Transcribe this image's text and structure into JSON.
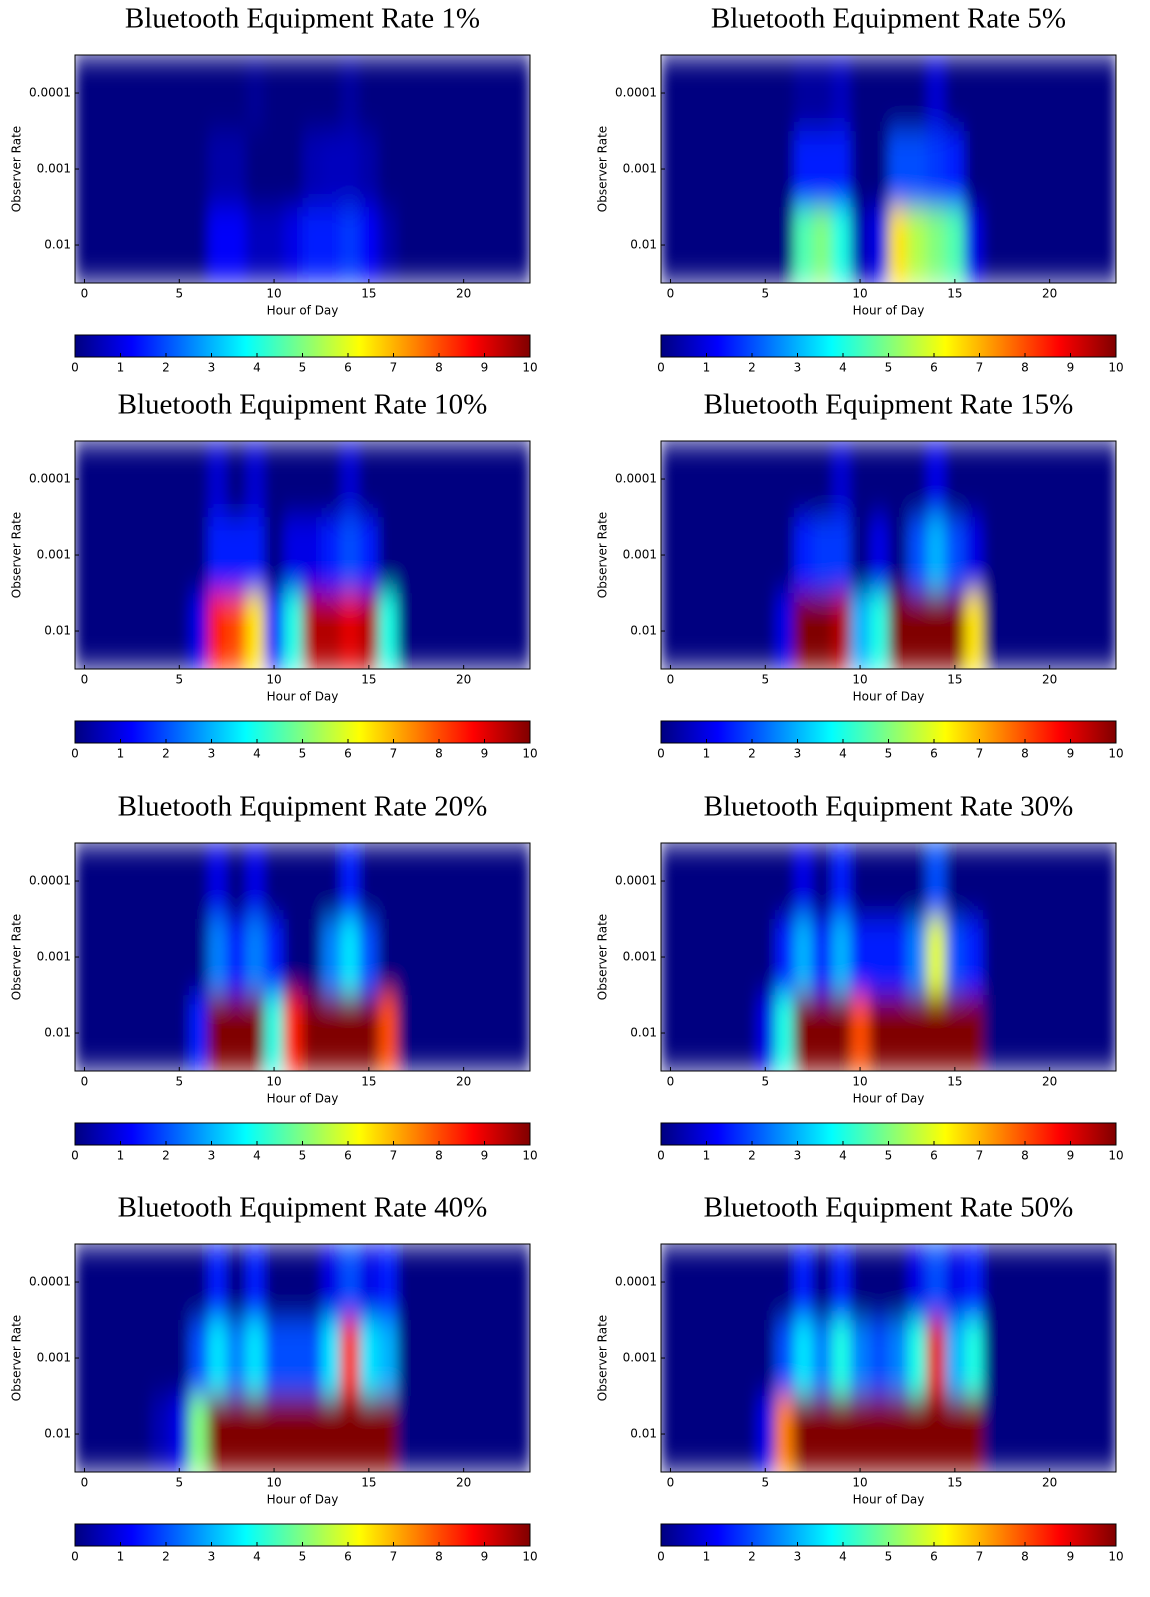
{
  "chart_data": [
    {
      "type": "heatmap",
      "title": "Bluetooth Equipment Rate 1%",
      "x_label": "Hour of Day",
      "y_label": "Observer Rate",
      "x": [
        0,
        1,
        2,
        3,
        4,
        5,
        6,
        7,
        8,
        9,
        10,
        11,
        12,
        13,
        14,
        15,
        16,
        17,
        18,
        19,
        20,
        21,
        22,
        23
      ],
      "y": [
        0.0001,
        0.001,
        0.01
      ],
      "z": [
        [
          0,
          0,
          0,
          0,
          0,
          0,
          0,
          0,
          0,
          0.2,
          0,
          0,
          0,
          0,
          0.3,
          0,
          0,
          0,
          0,
          0,
          0,
          0,
          0,
          0
        ],
        [
          0,
          0,
          0,
          0,
          0,
          0,
          0,
          0.4,
          0.4,
          0,
          0,
          0,
          0.5,
          0.6,
          0.6,
          0.4,
          0,
          0,
          0,
          0,
          0,
          0,
          0,
          0
        ],
        [
          0,
          0,
          0,
          0,
          0,
          0,
          0,
          1.2,
          1.2,
          0.6,
          0.6,
          1,
          1.5,
          1.5,
          1.8,
          1.2,
          0.4,
          0,
          0,
          0,
          0,
          0,
          0,
          0
        ]
      ],
      "xlim": [
        -0.5,
        23.5
      ],
      "ylim": [
        0.0316,
        3.16e-05
      ],
      "log_y": true,
      "xticks": [
        0,
        5,
        10,
        15,
        20
      ],
      "yticks": [
        0.0001,
        0.001,
        0.01
      ],
      "colormap": "jet",
      "clim": [
        0,
        10
      ],
      "cticks": [
        0,
        1,
        2,
        3,
        4,
        5,
        6,
        7,
        8,
        9,
        10
      ]
    },
    {
      "type": "heatmap",
      "title": "Bluetooth Equipment Rate 5%",
      "x_label": "Hour of Day",
      "y_label": "Observer Rate",
      "x": [
        0,
        1,
        2,
        3,
        4,
        5,
        6,
        7,
        8,
        9,
        10,
        11,
        12,
        13,
        14,
        15,
        16,
        17,
        18,
        19,
        20,
        21,
        22,
        23
      ],
      "y": [
        0.0001,
        0.001,
        0.01
      ],
      "z": [
        [
          0,
          0,
          0,
          0,
          0,
          0,
          0,
          0.3,
          0.3,
          0.6,
          0,
          0,
          0,
          0,
          0.8,
          0,
          0,
          0,
          0,
          0,
          0,
          0,
          0,
          0
        ],
        [
          0,
          0,
          0,
          0,
          0,
          0,
          0,
          1.5,
          1.5,
          1.5,
          0,
          0,
          2,
          2,
          1.8,
          1.5,
          0,
          0,
          0,
          0,
          0,
          0,
          0,
          0
        ],
        [
          0,
          0,
          0,
          0,
          0,
          0,
          0,
          4.5,
          5,
          4,
          0.5,
          1,
          6.5,
          5.5,
          5,
          4.5,
          1,
          0,
          0,
          0,
          0,
          0,
          0,
          0
        ]
      ],
      "xlim": [
        -0.5,
        23.5
      ],
      "ylim": [
        0.0316,
        3.16e-05
      ],
      "log_y": true,
      "xticks": [
        0,
        5,
        10,
        15,
        20
      ],
      "yticks": [
        0.0001,
        0.001,
        0.01
      ],
      "colormap": "jet",
      "clim": [
        0,
        10
      ],
      "cticks": [
        0,
        1,
        2,
        3,
        4,
        5,
        6,
        7,
        8,
        9,
        10
      ]
    },
    {
      "type": "heatmap",
      "title": "Bluetooth Equipment Rate 10%",
      "x_label": "Hour of Day",
      "y_label": "Observer Rate",
      "x": [
        0,
        1,
        2,
        3,
        4,
        5,
        6,
        7,
        8,
        9,
        10,
        11,
        12,
        13,
        14,
        15,
        16,
        17,
        18,
        19,
        20,
        21,
        22,
        23
      ],
      "y": [
        0.0001,
        0.001,
        0.01
      ],
      "z": [
        [
          0,
          0,
          0,
          0,
          0,
          0,
          0,
          0.8,
          0,
          0.8,
          0,
          0,
          0,
          0,
          0.8,
          0,
          0,
          0,
          0,
          0,
          0,
          0,
          0,
          0
        ],
        [
          0,
          0,
          0,
          0,
          0,
          0,
          0,
          1.5,
          1.5,
          1.5,
          0,
          1,
          1,
          1.5,
          2,
          1.5,
          0,
          0,
          0,
          0,
          0,
          0,
          0,
          0
        ],
        [
          0,
          0,
          0,
          0,
          0,
          0,
          1,
          8.5,
          8,
          6.5,
          1.5,
          4,
          9.5,
          9.5,
          9,
          9.5,
          4,
          0,
          0,
          0,
          0,
          0,
          0,
          0
        ]
      ],
      "xlim": [
        -0.5,
        23.5
      ],
      "ylim": [
        0.0316,
        3.16e-05
      ],
      "log_y": true,
      "xticks": [
        0,
        5,
        10,
        15,
        20
      ],
      "yticks": [
        0.0001,
        0.001,
        0.01
      ],
      "colormap": "jet",
      "clim": [
        0,
        10
      ],
      "cticks": [
        0,
        1,
        2,
        3,
        4,
        5,
        6,
        7,
        8,
        9,
        10
      ]
    },
    {
      "type": "heatmap",
      "title": "Bluetooth Equipment Rate 15%",
      "x_label": "Hour of Day",
      "y_label": "Observer Rate",
      "x": [
        0,
        1,
        2,
        3,
        4,
        5,
        6,
        7,
        8,
        9,
        10,
        11,
        12,
        13,
        14,
        15,
        16,
        17,
        18,
        19,
        20,
        21,
        22,
        23
      ],
      "y": [
        0.0001,
        0.001,
        0.01
      ],
      "z": [
        [
          0,
          0,
          0,
          0,
          0,
          0,
          0,
          0,
          0,
          0.8,
          0,
          0,
          0,
          0,
          1,
          0,
          0,
          0,
          0,
          0,
          0,
          0,
          0,
          0
        ],
        [
          0,
          0,
          0,
          0,
          0,
          0,
          0,
          1.5,
          1.8,
          1.8,
          0,
          1,
          0,
          2,
          3,
          2,
          1,
          0,
          0,
          0,
          0,
          0,
          0,
          0
        ],
        [
          0,
          0,
          0,
          0,
          0,
          0,
          1,
          10,
          10,
          9.5,
          3,
          4,
          10,
          10,
          10,
          10,
          6.5,
          0,
          0,
          0,
          0,
          0,
          0,
          0
        ]
      ],
      "xlim": [
        -0.5,
        23.5
      ],
      "ylim": [
        0.0316,
        3.16e-05
      ],
      "log_y": true,
      "xticks": [
        0,
        5,
        10,
        15,
        20
      ],
      "yticks": [
        0.0001,
        0.001,
        0.01
      ],
      "colormap": "jet",
      "clim": [
        0,
        10
      ],
      "cticks": [
        0,
        1,
        2,
        3,
        4,
        5,
        6,
        7,
        8,
        9,
        10
      ]
    },
    {
      "type": "heatmap",
      "title": "Bluetooth Equipment Rate 20%",
      "x_label": "Hour of Day",
      "y_label": "Observer Rate",
      "x": [
        0,
        1,
        2,
        3,
        4,
        5,
        6,
        7,
        8,
        9,
        10,
        11,
        12,
        13,
        14,
        15,
        16,
        17,
        18,
        19,
        20,
        21,
        22,
        23
      ],
      "y": [
        0.0001,
        0.001,
        0.01
      ],
      "z": [
        [
          0,
          0,
          0,
          0,
          0,
          0,
          0,
          1,
          0,
          1,
          0,
          0,
          0,
          0,
          1.5,
          0,
          0,
          0,
          0,
          0,
          0,
          0,
          0,
          0
        ],
        [
          0,
          0,
          0,
          0,
          0,
          0,
          0,
          2.5,
          1.5,
          2.5,
          1.5,
          0,
          0,
          2.5,
          3.5,
          2,
          0,
          0,
          0,
          0,
          0,
          0,
          0,
          0
        ],
        [
          0,
          0,
          0,
          0,
          0,
          0,
          1.5,
          10,
          10,
          10,
          4,
          8.5,
          10,
          10,
          10,
          10,
          8,
          0,
          0,
          0,
          0,
          0,
          0,
          0
        ]
      ],
      "xlim": [
        -0.5,
        23.5
      ],
      "ylim": [
        0.0316,
        3.16e-05
      ],
      "log_y": true,
      "xticks": [
        0,
        5,
        10,
        15,
        20
      ],
      "yticks": [
        0.0001,
        0.001,
        0.01
      ],
      "colormap": "jet",
      "clim": [
        0,
        10
      ],
      "cticks": [
        0,
        1,
        2,
        3,
        4,
        5,
        6,
        7,
        8,
        9,
        10
      ]
    },
    {
      "type": "heatmap",
      "title": "Bluetooth Equipment Rate 30%",
      "x_label": "Hour of Day",
      "y_label": "Observer Rate",
      "x": [
        0,
        1,
        2,
        3,
        4,
        5,
        6,
        7,
        8,
        9,
        10,
        11,
        12,
        13,
        14,
        15,
        16,
        17,
        18,
        19,
        20,
        21,
        22,
        23
      ],
      "y": [
        0.0001,
        0.001,
        0.01
      ],
      "z": [
        [
          0,
          0,
          0,
          0,
          0,
          0,
          0,
          1,
          0,
          1.5,
          0,
          0,
          0,
          0,
          2,
          0,
          0,
          0,
          0,
          0,
          0,
          0,
          0,
          0
        ],
        [
          0,
          0,
          0,
          0,
          0,
          0,
          1.5,
          3,
          1.5,
          3,
          1.5,
          1.5,
          1.5,
          2.5,
          6,
          2,
          1.5,
          0,
          0,
          0,
          0,
          0,
          0,
          0
        ],
        [
          0,
          0,
          0,
          0,
          0,
          1,
          4,
          10,
          10,
          10,
          8,
          10,
          10,
          10,
          10,
          10,
          10,
          0,
          0,
          0,
          0,
          0,
          0,
          0
        ]
      ],
      "xlim": [
        -0.5,
        23.5
      ],
      "ylim": [
        0.0316,
        3.16e-05
      ],
      "log_y": true,
      "xticks": [
        0,
        5,
        10,
        15,
        20
      ],
      "yticks": [
        0.0001,
        0.001,
        0.01
      ],
      "colormap": "jet",
      "clim": [
        0,
        10
      ],
      "cticks": [
        0,
        1,
        2,
        3,
        4,
        5,
        6,
        7,
        8,
        9,
        10
      ]
    },
    {
      "type": "heatmap",
      "title": "Bluetooth Equipment Rate 40%",
      "x_label": "Hour of Day",
      "y_label": "Observer Rate",
      "x": [
        0,
        1,
        2,
        3,
        4,
        5,
        6,
        7,
        8,
        9,
        10,
        11,
        12,
        13,
        14,
        15,
        16,
        17,
        18,
        19,
        20,
        21,
        22,
        23
      ],
      "y": [
        0.0001,
        0.001,
        0.01
      ],
      "z": [
        [
          0,
          0,
          0,
          0,
          0,
          0,
          0,
          1.5,
          0,
          1.5,
          0,
          0,
          0,
          1,
          2,
          1,
          1.5,
          0,
          0,
          0,
          0,
          0,
          0,
          0
        ],
        [
          0,
          0,
          0,
          0,
          0,
          0,
          2,
          3.5,
          2.5,
          3.5,
          2,
          2,
          2,
          3.5,
          8.5,
          3.5,
          3,
          0,
          0,
          0,
          0,
          0,
          0,
          0
        ],
        [
          0,
          0,
          0,
          0,
          0.5,
          1,
          5,
          10,
          10,
          10,
          10,
          10,
          10,
          10,
          10,
          10,
          10,
          0,
          0,
          0,
          0,
          0,
          0,
          0
        ]
      ],
      "xlim": [
        -0.5,
        23.5
      ],
      "ylim": [
        0.0316,
        3.16e-05
      ],
      "log_y": true,
      "xticks": [
        0,
        5,
        10,
        15,
        20
      ],
      "yticks": [
        0.0001,
        0.001,
        0.01
      ],
      "colormap": "jet",
      "clim": [
        0,
        10
      ],
      "cticks": [
        0,
        1,
        2,
        3,
        4,
        5,
        6,
        7,
        8,
        9,
        10
      ]
    },
    {
      "type": "heatmap",
      "title": "Bluetooth Equipment Rate 50%",
      "x_label": "Hour of Day",
      "y_label": "Observer Rate",
      "x": [
        0,
        1,
        2,
        3,
        4,
        5,
        6,
        7,
        8,
        9,
        10,
        11,
        12,
        13,
        14,
        15,
        16,
        17,
        18,
        19,
        20,
        21,
        22,
        23
      ],
      "y": [
        0.0001,
        0.001,
        0.01
      ],
      "z": [
        [
          0,
          0,
          0,
          0,
          0,
          0,
          0,
          1.5,
          0,
          1.5,
          0,
          0,
          0,
          1,
          2,
          1,
          1.5,
          0,
          0,
          0,
          0,
          0,
          0,
          0
        ],
        [
          0,
          0,
          0,
          0,
          0,
          0,
          2,
          3.5,
          2.5,
          4,
          2.5,
          2,
          2.5,
          4,
          9,
          3,
          4,
          0,
          0,
          0,
          0,
          0,
          0,
          0
        ],
        [
          0,
          0,
          0,
          0,
          0,
          1,
          7.5,
          10,
          10,
          10,
          10,
          10,
          10,
          10,
          10,
          10,
          10,
          0,
          0,
          0,
          0,
          0,
          0,
          0
        ]
      ],
      "xlim": [
        -0.5,
        23.5
      ],
      "ylim": [
        0.0316,
        3.16e-05
      ],
      "log_y": true,
      "xticks": [
        0,
        5,
        10,
        15,
        20
      ],
      "yticks": [
        0.0001,
        0.001,
        0.01
      ],
      "colormap": "jet",
      "clim": [
        0,
        10
      ],
      "cticks": [
        0,
        1,
        2,
        3,
        4,
        5,
        6,
        7,
        8,
        9,
        10
      ]
    }
  ]
}
